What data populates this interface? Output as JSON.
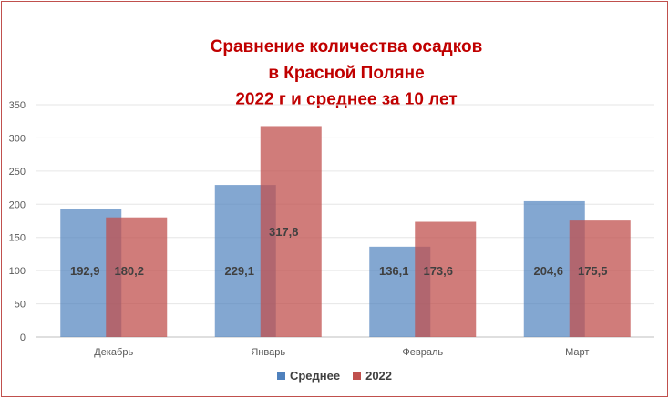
{
  "chart_data": {
    "type": "bar",
    "title_lines": [
      "Сравнение количества осадков",
      "в Красной Поляне",
      "2022 г и среднее за 10 лет"
    ],
    "categories": [
      "Декабрь",
      "Январь",
      "Февраль",
      "Март"
    ],
    "series": [
      {
        "name": "Среднее",
        "values": [
          192.9,
          229.1,
          136.1,
          204.6
        ],
        "labels": [
          "192,9",
          "229,1",
          "136,1",
          "204,6"
        ],
        "color": "#4f81bd"
      },
      {
        "name": "2022",
        "values": [
          180.2,
          317.8,
          173.6,
          175.5
        ],
        "labels": [
          "180,2",
          "317,8",
          "173,6",
          "175,5"
        ],
        "color": "#c0504d"
      }
    ],
    "ylim": [
      0,
      350
    ],
    "yticks": [
      0,
      50,
      100,
      150,
      200,
      250,
      300,
      350
    ],
    "grid": true,
    "legend_position": "bottom"
  }
}
